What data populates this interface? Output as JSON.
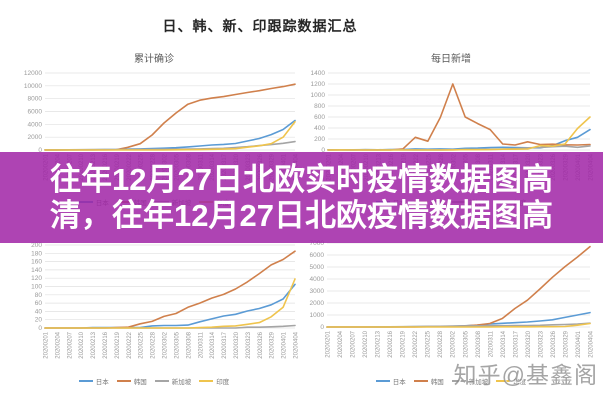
{
  "main_title": "日、韩、新、印跟踪数据汇总",
  "overlay": {
    "line1": "往年12月27日北欧实时疫情数据图高",
    "line2": "清，往年12月27日北欧疫情数据图高",
    "background_color": "#A023A6",
    "background_alpha": 0.85,
    "text_color": "#FFFFFF"
  },
  "watermark": "知乎@基鑫阁",
  "axis_style": {
    "tick_color": "#9a9a9a",
    "grid_color": "#e0e0e0"
  },
  "chart_data": [
    {
      "type": "line",
      "title": "累计确诊",
      "categories": [
        "20200201",
        "20200204",
        "20200207",
        "20200210",
        "20200213",
        "20200216",
        "20200219",
        "20200222",
        "20200225",
        "20200228",
        "20200302",
        "20200305",
        "20200308",
        "20200311",
        "20200314",
        "20200317",
        "20200320",
        "20200323",
        "20200326",
        "20200329",
        "20200401",
        "20200404"
      ],
      "ylim": [
        0,
        12000
      ],
      "ytick_step": 2000,
      "grid": true,
      "legend_position": "bottom",
      "series": [
        {
          "name": "日本",
          "color": "#5B9BD5",
          "values": [
            20,
            23,
            25,
            26,
            29,
            60,
            75,
            135,
            170,
            230,
            275,
            360,
            490,
            620,
            775,
            880,
            1010,
            1400,
            1800,
            2400,
            3200,
            4600
          ]
        },
        {
          "name": "韩国",
          "color": "#D0804C",
          "values": [
            12,
            16,
            25,
            27,
            28,
            30,
            51,
            433,
            977,
            2337,
            4212,
            5766,
            7134,
            7755,
            8086,
            8320,
            8652,
            8961,
            9241,
            9583,
            9887,
            10250
          ]
        },
        {
          "name": "新加坡",
          "color": "#A5A5A5",
          "values": [
            18,
            24,
            30,
            45,
            58,
            75,
            84,
            89,
            91,
            96,
            108,
            117,
            150,
            178,
            212,
            266,
            385,
            509,
            683,
            844,
            1050,
            1310
          ]
        },
        {
          "name": "印度",
          "color": "#EFC44D",
          "values": [
            1,
            3,
            3,
            3,
            3,
            3,
            3,
            3,
            3,
            3,
            5,
            30,
            39,
            62,
            102,
            142,
            195,
            433,
            650,
            980,
            2000,
            4400
          ]
        }
      ]
    },
    {
      "type": "line",
      "title": "每日新增",
      "categories": [
        "20200201",
        "20200204",
        "20200207",
        "20200210",
        "20200213",
        "20200216",
        "20200219",
        "20200222",
        "20200225",
        "20200228",
        "20200302",
        "20200305",
        "20200308",
        "20200311",
        "20200314",
        "20200317",
        "20200320",
        "20200323",
        "20200326",
        "20200329",
        "20200401",
        "20200404"
      ],
      "ylim": [
        0,
        1400
      ],
      "ytick_step": 200,
      "grid": true,
      "legend_position": "bottom",
      "series": [
        {
          "name": "日本",
          "color": "#5B9BD5",
          "values": [
            3,
            4,
            2,
            5,
            4,
            8,
            10,
            20,
            15,
            20,
            15,
            30,
            35,
            45,
            50,
            45,
            40,
            40,
            80,
            170,
            230,
            370
          ]
        },
        {
          "name": "韩国",
          "color": "#D0804C",
          "values": [
            2,
            3,
            4,
            1,
            1,
            2,
            20,
            230,
            160,
            590,
            1200,
            600,
            480,
            370,
            110,
            90,
            150,
            100,
            105,
            95,
            90,
            100
          ]
        },
        {
          "name": "新加坡",
          "color": "#A5A5A5",
          "values": [
            2,
            3,
            3,
            5,
            4,
            5,
            3,
            2,
            1,
            2,
            5,
            6,
            10,
            12,
            14,
            23,
            40,
            45,
            60,
            70,
            50,
            75
          ]
        },
        {
          "name": "印度",
          "color": "#EFC44D",
          "values": [
            0,
            1,
            0,
            0,
            0,
            0,
            0,
            0,
            0,
            0,
            1,
            8,
            5,
            8,
            15,
            14,
            18,
            80,
            70,
            110,
            390,
            600
          ]
        }
      ]
    },
    {
      "type": "line",
      "title": "",
      "categories": [
        "20200201",
        "20200204",
        "20200207",
        "20200210",
        "20200213",
        "20200216",
        "20200219",
        "20200222",
        "20200225",
        "20200228",
        "20200302",
        "20200305",
        "20200308",
        "20200311",
        "20200314",
        "20200317",
        "20200320",
        "20200323",
        "20200326",
        "20200329",
        "20200401",
        "20200404"
      ],
      "ylim": [
        0,
        200
      ],
      "ytick_step": 20,
      "grid": true,
      "legend_position": "bottom",
      "series": [
        {
          "name": "日本",
          "color": "#5B9BD5",
          "values": [
            0,
            0,
            0,
            0,
            1,
            1,
            1,
            1,
            1,
            5,
            6,
            6,
            7,
            15,
            22,
            29,
            33,
            41,
            47,
            56,
            70,
            105
          ]
        },
        {
          "name": "韩国",
          "color": "#D0804C",
          "values": [
            0,
            0,
            0,
            0,
            0,
            0,
            1,
            2,
            10,
            16,
            28,
            35,
            50,
            60,
            72,
            81,
            94,
            111,
            131,
            152,
            165,
            185
          ]
        },
        {
          "name": "新加坡",
          "color": "#A5A5A5",
          "values": [
            0,
            0,
            0,
            0,
            0,
            0,
            0,
            0,
            0,
            0,
            0,
            0,
            0,
            0,
            0,
            0,
            0,
            2,
            2,
            3,
            4,
            6
          ]
        },
        {
          "name": "印度",
          "color": "#EFC44D",
          "values": [
            0,
            0,
            0,
            0,
            0,
            0,
            0,
            0,
            0,
            0,
            0,
            0,
            0,
            1,
            2,
            4,
            5,
            9,
            13,
            27,
            50,
            118
          ]
        }
      ]
    },
    {
      "type": "line",
      "title": "",
      "categories": [
        "20200201",
        "20200204",
        "20200207",
        "20200210",
        "20200213",
        "20200216",
        "20200219",
        "20200222",
        "20200225",
        "20200228",
        "20200302",
        "20200305",
        "20200308",
        "20200311",
        "20200314",
        "20200317",
        "20200320",
        "20200323",
        "20200326",
        "20200329",
        "20200401",
        "20200404"
      ],
      "ylim": [
        0,
        7000
      ],
      "ytick_step": 1000,
      "grid": true,
      "legend_position": "bottom",
      "series": [
        {
          "name": "日本",
          "color": "#5B9BD5",
          "values": [
            0,
            1,
            1,
            4,
            9,
            12,
            20,
            25,
            30,
            45,
            60,
            100,
            150,
            250,
            310,
            360,
            420,
            500,
            600,
            800,
            1000,
            1200
          ]
        },
        {
          "name": "韩国",
          "color": "#D0804C",
          "values": [
            0,
            0,
            0,
            0,
            0,
            0,
            1,
            10,
            22,
            27,
            30,
            90,
            160,
            290,
            710,
            1540,
            2230,
            3170,
            4140,
            5030,
            5830,
            6700
          ]
        },
        {
          "name": "新加坡",
          "color": "#A5A5A5",
          "values": [
            0,
            0,
            1,
            2,
            9,
            17,
            24,
            37,
            51,
            62,
            78,
            90,
            97,
            105,
            109,
            114,
            124,
            144,
            183,
            212,
            245,
            320
          ]
        },
        {
          "name": "印度",
          "color": "#EFC44D",
          "values": [
            0,
            0,
            0,
            0,
            0,
            0,
            0,
            0,
            3,
            3,
            3,
            3,
            4,
            4,
            13,
            14,
            20,
            23,
            27,
            45,
            150,
            290
          ]
        }
      ]
    }
  ]
}
